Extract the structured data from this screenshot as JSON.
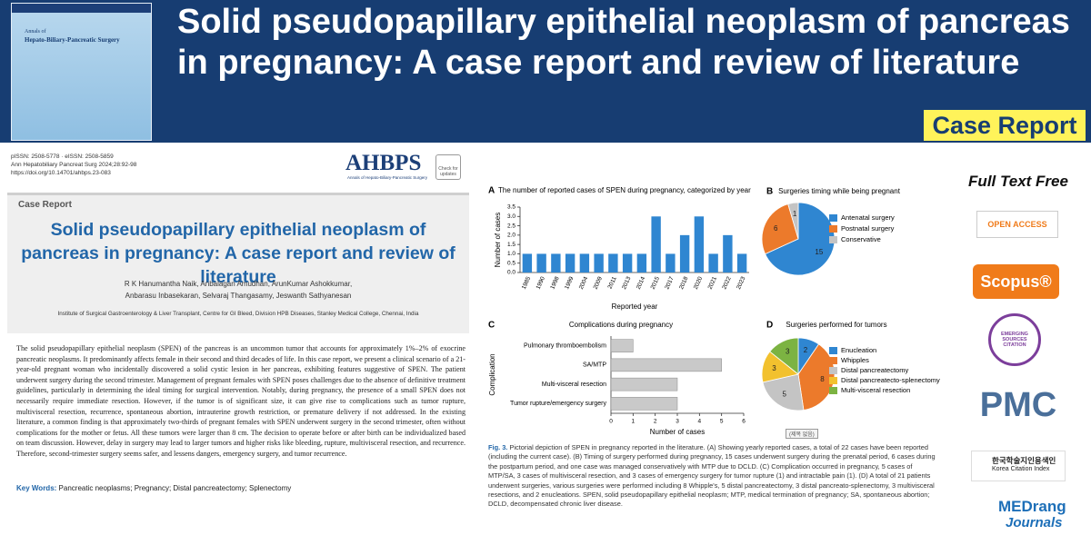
{
  "banner": {
    "title": "Solid pseudopapillary epithelial neoplasm of pancreas in pregnancy: A case report and review of literature",
    "badge": "Case Report",
    "cover": {
      "journal_line1": "Annals of",
      "journal_line2": "Hepato-Biliary-Pancreatic Surgery"
    }
  },
  "paper": {
    "issn": "pISSN: 2508-5778 · eISSN: 2508-5859",
    "citation": "Ann Hepatobiliary Pancreat Surg 2024;28:92-98",
    "doi": "https://doi.org/10.14701/ahbps.23-083",
    "logo": "AHBPS",
    "logo_subtitle": "Annals of Hepato-Biliary-Pancreatic Surgery",
    "check_updates": "Check for updates",
    "article_type": "Case Report",
    "title": "Solid pseudopapillary epithelial neoplasm of pancreas in pregnancy: A case report and review of literature",
    "authors": [
      "R K Hanumantha Naik, Anbalagan Amudhan, ArunKumar Ashokkumar,",
      "Anbarasu Inbasekaran, Selvaraj Thangasamy, Jeswanth Sathyanesan"
    ],
    "affiliation": "Institute of Surgical Gastroenterology & Liver Transplant, Centre for GI Bleed, Division HPB Diseases, Stanley Medical College, Chennai, India",
    "abstract": "The solid pseudopapillary epithelial neoplasm (SPEN) of the pancreas is an uncommon tumor that accounts for approximately 1%–2% of exocrine pancreatic neoplasms. It predominantly affects female in their second and third decades of life. In this case report, we present a clinical scenario of a 21-year-old pregnant woman who incidentally discovered a solid cystic lesion in her pancreas, exhibiting features suggestive of SPEN. The patient underwent surgery during the second trimester. Management of pregnant females with SPEN poses challenges due to the absence of definitive treatment guidelines, particularly in determining the ideal timing for surgical intervention. Notably, during pregnancy, the presence of a small SPEN does not necessarily require immediate resection. However, if the tumor is of significant size, it can give rise to complications such as tumor rupture, multivisceral resection, recurrence, spontaneous abortion, intrauterine growth restriction, or premature delivery if not addressed. In the existing literature, a common finding is that approximately two-thirds of pregnant females with SPEN underwent surgery in the second trimester, often without complications for the mother or fetus. All these tumors were larger than 8 cm. The decision to operate before or after birth can be individualized based on team discussion. However, delay in surgery may lead to larger tumors and higher risks like bleeding, rupture, multivisceral resection, and recurrence. Therefore, second-trimester surgery seems safer, and lessens dangers, emergency surgery, and tumor recurrence.",
    "keywords_label": "Key Words:",
    "keywords": "Pancreatic neoplasms; Pregnancy; Distal pancreatectomy; Splenectomy"
  },
  "chart_data": [
    {
      "type": "bar",
      "panel": "A",
      "title": "The number of reported cases of SPEN during pregnancy, categorized by year",
      "xlabel": "Reported year",
      "ylabel": "Number of cases",
      "categories": [
        "1985",
        "1990",
        "1998",
        "1999",
        "2004",
        "2009",
        "2011",
        "2013",
        "2014",
        "2015",
        "2017",
        "2018",
        "2020",
        "2021",
        "2022",
        "2023"
      ],
      "values": [
        1,
        1,
        1,
        1,
        1,
        1,
        1,
        1,
        1,
        3,
        1,
        2,
        3,
        1,
        2,
        1
      ],
      "color": "#2f86d1",
      "ylim": [
        0,
        3.5
      ],
      "yticks": [
        {
          "value": 0,
          "label": "0.0"
        },
        0.5,
        {
          "value": 1,
          "label": "1.0"
        },
        1.5,
        {
          "value": 2,
          "label": "2.0"
        },
        2.5,
        {
          "value": 3,
          "label": "3.0"
        },
        3.5
      ]
    },
    {
      "type": "pie",
      "panel": "B",
      "title": "Surgeries timing while being pregnant",
      "categories": [
        "Antenatal surgery",
        "Postnatal surgery",
        "Conservative"
      ],
      "values": [
        15,
        6,
        1
      ],
      "colors": [
        "#2f86d1",
        "#ec7a2b",
        "#c4c4c4"
      ]
    },
    {
      "type": "barh",
      "panel": "C",
      "title": "Complications during pregnancy",
      "xlabel": "Number of cases",
      "ylabel": "Complication",
      "categories": [
        "Pulmonary thromboembolism",
        "SA/MTP",
        "Multi-visceral resection",
        "Tumor rupture/emergency surgery"
      ],
      "values": [
        1,
        5,
        3,
        3
      ],
      "color": "#c9c9c9",
      "xlim": [
        0,
        6
      ],
      "xticks": [
        0,
        1,
        2,
        3,
        4,
        5,
        6
      ]
    },
    {
      "type": "pie",
      "panel": "D",
      "title": "Surgeries performed for tumors",
      "categories": [
        "Enucleation",
        "Whipples",
        "Distal pancreatectomy",
        "Distal pancreatecto-splenectomy",
        "Multi-visceral resection"
      ],
      "values": [
        2,
        8,
        5,
        3,
        3
      ],
      "colors": [
        "#2f86d1",
        "#ec7a2b",
        "#c4c4c4",
        "#f2c12e",
        "#7cb342"
      ]
    }
  ],
  "figure": {
    "stamp": "(제목 없음)",
    "caption_label": "Fig. 3.",
    "caption": "Pictorial depiction of SPEN in pregnancy reported in the literature. (A) Showing yearly reported cases, a total of 22 cases have been reported (including the current case). (B) Timing of surgery performed during pregnancy, 15 cases underwent surgery during the prenatal period, 6 cases during the postpartum period, and one case was managed conservatively with MTP due to DCLD. (C) Complication occurred in pregnancy, 5 cases of MTP/SA, 3 cases of multivisceral resection, and 3 cases of emergency surgery for tumor rupture (1) and intractable pain (1). (D) A total of 21 patients underwent surgeries, various surgeries were performed including 8 Whipple's, 5 distal pancreatectomy, 3 distal pancreato-splenectomy, 3 multivisceral resections, and 2 enucleations. SPEN, solid pseudopapillary epithelial neoplasm; MTP, medical termination of pregnancy; SA, spontaneous abortion; DCLD, decompensated chronic liver disease."
  },
  "sidebar": {
    "free": "Full Text Free",
    "open_access": "OPEN ACCESS",
    "scopus": "Scopus®",
    "esci": "EMERGING SOURCES CITATION",
    "pmc": "PMC",
    "kci_korean": "한국학술지인용색인",
    "kci": "Korea Citation Index",
    "medrang": "MEDrang",
    "journals": "Journals"
  }
}
